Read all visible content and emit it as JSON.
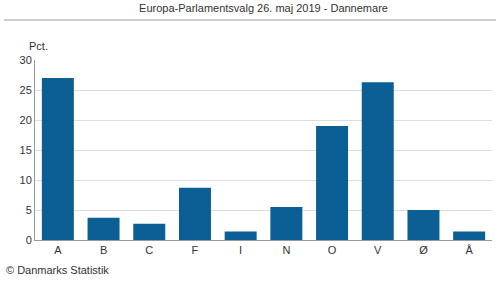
{
  "chart_data": {
    "type": "bar",
    "title": "Europa-Parlamentsvalg 26. maj 2019 - Dannemare",
    "y_label": "Pct.",
    "source": "© Danmarks Statistik",
    "categories": [
      "A",
      "B",
      "C",
      "F",
      "I",
      "N",
      "O",
      "V",
      "Ø",
      "Å"
    ],
    "values": [
      27.0,
      3.7,
      2.7,
      8.7,
      1.4,
      5.5,
      19.0,
      26.3,
      5.0,
      1.4
    ],
    "color": "#0b5f94",
    "ylim": [
      0,
      30
    ],
    "yticks": [
      0,
      5,
      10,
      15,
      20,
      25,
      30
    ],
    "grid": true
  }
}
